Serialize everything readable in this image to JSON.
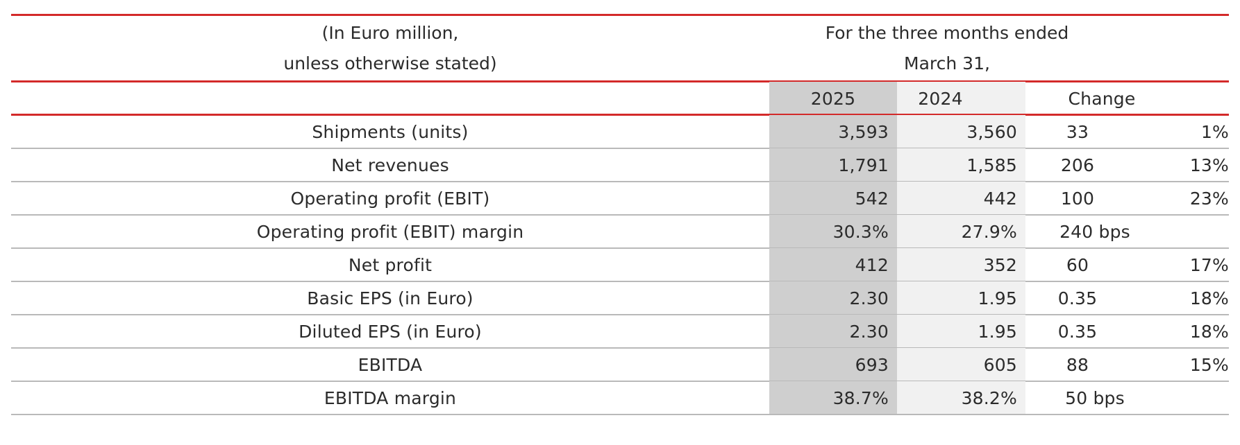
{
  "header": {
    "unit_line1": "(In Euro million,",
    "unit_line2": "unless otherwise stated)",
    "period_line1": "For the three months ended",
    "period_line2": "March 31,",
    "col_2025": "2025",
    "col_2024": "2024",
    "col_change": "Change"
  },
  "rows": [
    {
      "label": "Shipments (units)",
      "y2025": "3,593",
      "y2024": "3,560",
      "change": "33",
      "pct": "1%"
    },
    {
      "label": "Net revenues",
      "y2025": "1,791",
      "y2024": "1,585",
      "change": "206",
      "pct": "13%"
    },
    {
      "label": "Operating profit (EBIT)",
      "y2025": "542",
      "y2024": "442",
      "change": "100",
      "pct": "23%"
    },
    {
      "label": "Operating profit (EBIT) margin",
      "y2025": "30.3%",
      "y2024": "27.9%",
      "change": "240 bps",
      "pct": ""
    },
    {
      "label": "Net profit",
      "y2025": "412",
      "y2024": "352",
      "change": "60",
      "pct": "17%"
    },
    {
      "label": "Basic EPS (in Euro)",
      "y2025": "2.30",
      "y2024": "1.95",
      "change": "0.35",
      "pct": "18%"
    },
    {
      "label": "Diluted EPS (in Euro)",
      "y2025": "2.30",
      "y2024": "1.95",
      "change": "0.35",
      "pct": "18%"
    },
    {
      "label": "EBITDA",
      "y2025": "693",
      "y2024": "605",
      "change": "88",
      "pct": "15%"
    },
    {
      "label": "EBITDA margin",
      "y2025": "38.7%",
      "y2024": "38.2%",
      "change": "50 bps",
      "pct": ""
    }
  ],
  "colors": {
    "rule_red": "#d32a2a",
    "rule_grey": "#b9b9b9",
    "col_2025_bg": "#cfcfcf",
    "col_2024_bg": "#f1f1f1",
    "text": "#2b2b2b"
  }
}
